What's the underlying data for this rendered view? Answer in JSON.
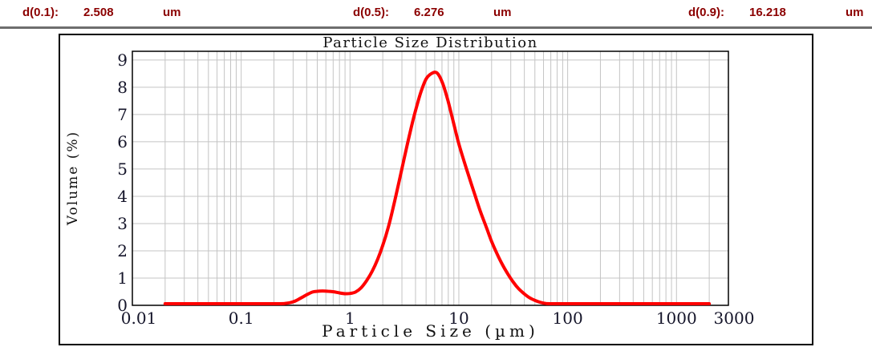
{
  "header": {
    "entries": [
      {
        "label": "d(0.1):",
        "value": "2.508",
        "unit": "um"
      },
      {
        "label": "d(0.5):",
        "value": "6.276",
        "unit": "um"
      },
      {
        "label": "d(0.9):",
        "value": "16.218",
        "unit": "um"
      }
    ],
    "text_color": "#8b0000"
  },
  "chart_data": {
    "type": "line",
    "title": "Particle Size Distribution",
    "xlabel": "Particle Size (µm)",
    "ylabel": "Volume (%)",
    "x_scale": "log",
    "xlim": [
      0.01,
      3000
    ],
    "ylim": [
      0,
      9.32
    ],
    "x_ticks": [
      0.01,
      0.1,
      1,
      10,
      100,
      1000,
      3000
    ],
    "x_tick_labels": [
      "0.01",
      "0.1",
      "1",
      "10",
      "100",
      "1000",
      "3000"
    ],
    "y_ticks": [
      0,
      1,
      2,
      3,
      4,
      5,
      6,
      7,
      8,
      9
    ],
    "grid": true,
    "legend": "none",
    "colors": {
      "line": "#ff0000",
      "grid": "#c4c4c4",
      "axis": "#000000",
      "tick_text": "#15152a"
    },
    "series": [
      {
        "name": "volume-percent",
        "points": [
          [
            0.02,
            0
          ],
          [
            0.05,
            0
          ],
          [
            0.1,
            0
          ],
          [
            0.15,
            0
          ],
          [
            0.2,
            0
          ],
          [
            0.25,
            0.01
          ],
          [
            0.3,
            0.07
          ],
          [
            0.35,
            0.2
          ],
          [
            0.4,
            0.33
          ],
          [
            0.45,
            0.43
          ],
          [
            0.5,
            0.46
          ],
          [
            0.56,
            0.47
          ],
          [
            0.63,
            0.46
          ],
          [
            0.71,
            0.44
          ],
          [
            0.8,
            0.4
          ],
          [
            0.9,
            0.37
          ],
          [
            1.0,
            0.38
          ],
          [
            1.12,
            0.43
          ],
          [
            1.26,
            0.58
          ],
          [
            1.42,
            0.85
          ],
          [
            1.6,
            1.2
          ],
          [
            1.8,
            1.65
          ],
          [
            2.0,
            2.15
          ],
          [
            2.24,
            2.8
          ],
          [
            2.51,
            3.6
          ],
          [
            2.82,
            4.5
          ],
          [
            3.16,
            5.4
          ],
          [
            3.55,
            6.3
          ],
          [
            3.98,
            7.1
          ],
          [
            4.47,
            7.8
          ],
          [
            5.01,
            8.3
          ],
          [
            5.62,
            8.5
          ],
          [
            6.31,
            8.52
          ],
          [
            7.08,
            8.15
          ],
          [
            7.94,
            7.5
          ],
          [
            8.91,
            6.7
          ],
          [
            10,
            5.9
          ],
          [
            11.2,
            5.25
          ],
          [
            12.6,
            4.6
          ],
          [
            14.1,
            4.0
          ],
          [
            15.8,
            3.4
          ],
          [
            17.8,
            2.85
          ],
          [
            20,
            2.3
          ],
          [
            22.4,
            1.85
          ],
          [
            25.1,
            1.45
          ],
          [
            28.2,
            1.1
          ],
          [
            31.6,
            0.8
          ],
          [
            35.5,
            0.55
          ],
          [
            39.8,
            0.37
          ],
          [
            44.7,
            0.22
          ],
          [
            50.1,
            0.12
          ],
          [
            56.2,
            0.05
          ],
          [
            63.1,
            0.01
          ],
          [
            70.8,
            0
          ],
          [
            100,
            0
          ],
          [
            200,
            0
          ],
          [
            500,
            0
          ],
          [
            1000,
            0
          ],
          [
            2000,
            0
          ]
        ]
      }
    ]
  }
}
